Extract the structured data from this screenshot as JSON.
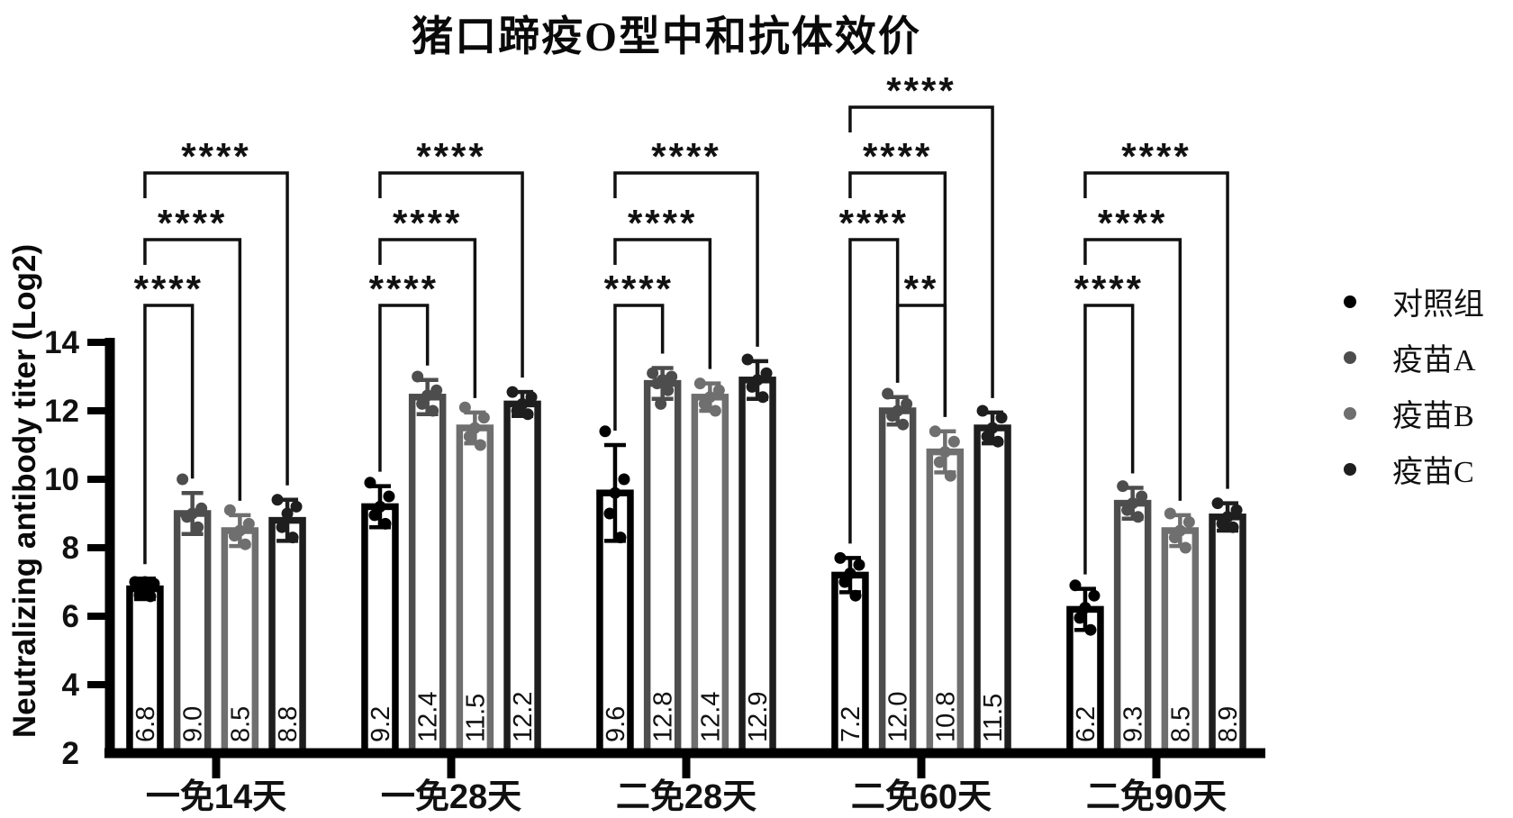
{
  "title": "猪口蹄疫O型中和抗体效价",
  "ylabel": "Neutralizing antibody titer (Log2)",
  "legend": [
    {
      "label": "对照组",
      "color": "#000000"
    },
    {
      "label": "疫苗A",
      "color": "#4d4d4d"
    },
    {
      "label": "疫苗B",
      "color": "#6f6f6f"
    },
    {
      "label": "疫苗C",
      "color": "#1e1e1e"
    }
  ],
  "chart_data": {
    "type": "bar",
    "title": "猪口蹄疫O型中和抗体效价",
    "ylabel": "Neutralizing antibody titer (Log2)",
    "ylim": [
      2,
      14
    ],
    "yticks": [
      2,
      4,
      6,
      8,
      10,
      12,
      14
    ],
    "grid": false,
    "legend_position": "right",
    "categories": [
      "一免14天",
      "一免28天",
      "二免28天",
      "二免60天",
      "二免90天"
    ],
    "series": [
      {
        "name": "对照组",
        "color": "#000000",
        "values": [
          6.8,
          9.2,
          9.6,
          7.2,
          6.2
        ],
        "sd": [
          0.3,
          0.6,
          1.4,
          0.5,
          0.6
        ],
        "points": [
          [
            7.0,
            6.95,
            7.0,
            6.62,
            6.58,
            6.9
          ],
          [
            9.9,
            9.5,
            9.2,
            8.95,
            8.7
          ],
          [
            11.4,
            10.0,
            9.6,
            9.0,
            8.3
          ],
          [
            7.7,
            7.5,
            7.25,
            7.0,
            6.6
          ],
          [
            6.9,
            6.6,
            6.25,
            5.95,
            5.6
          ]
        ]
      },
      {
        "name": "疫苗A",
        "color": "#4d4d4d",
        "values": [
          9.0,
          12.4,
          12.8,
          12.0,
          9.3
        ],
        "sd": [
          0.6,
          0.5,
          0.45,
          0.4,
          0.45
        ],
        "points": [
          [
            10.0,
            9.15,
            9.0,
            8.9,
            8.6
          ],
          [
            13.0,
            12.6,
            12.45,
            12.2,
            12.0
          ],
          [
            13.1,
            13.0,
            12.9,
            12.8,
            12.6,
            12.2
          ],
          [
            12.5,
            12.2,
            12.0,
            11.85,
            11.6
          ],
          [
            9.8,
            9.5,
            9.3,
            9.1,
            8.9
          ]
        ]
      },
      {
        "name": "疫苗B",
        "color": "#6f6f6f",
        "values": [
          8.5,
          11.5,
          12.4,
          10.8,
          8.5
        ],
        "sd": [
          0.45,
          0.45,
          0.4,
          0.6,
          0.45
        ],
        "points": [
          [
            9.1,
            8.7,
            8.5,
            8.35,
            8.1
          ],
          [
            12.1,
            11.8,
            11.5,
            11.25,
            11.0
          ],
          [
            12.8,
            12.6,
            12.4,
            12.2,
            12.0
          ],
          [
            11.4,
            11.1,
            10.8,
            10.5,
            10.1
          ],
          [
            9.0,
            8.75,
            8.5,
            8.3,
            8.0
          ]
        ]
      },
      {
        "name": "疫苗C",
        "color": "#1e1e1e",
        "values": [
          8.8,
          12.2,
          12.9,
          11.5,
          8.9
        ],
        "sd": [
          0.6,
          0.35,
          0.55,
          0.45,
          0.4
        ],
        "points": [
          [
            9.4,
            9.2,
            9.0,
            8.6,
            8.3
          ],
          [
            12.55,
            12.4,
            12.2,
            12.0,
            11.9
          ],
          [
            13.5,
            13.1,
            12.9,
            12.7,
            12.4
          ],
          [
            12.0,
            11.8,
            11.5,
            11.25,
            11.1
          ],
          [
            9.3,
            9.1,
            8.9,
            8.7,
            8.6
          ]
        ]
      }
    ],
    "bar_value_labels": [
      [
        "6.8",
        "9.0",
        "8.5",
        "8.8"
      ],
      [
        "9.2",
        "12.4",
        "11.5",
        "12.2"
      ],
      [
        "9.6",
        "12.8",
        "12.4",
        "12.9"
      ],
      [
        "7.2",
        "12.0",
        "10.8",
        "11.5"
      ],
      [
        "6.2",
        "9.3",
        "8.5",
        "8.9"
      ]
    ],
    "significance": [
      {
        "group": 0,
        "from": 0,
        "to": 1,
        "level": 1,
        "label": "****"
      },
      {
        "group": 0,
        "from": 0,
        "to": 2,
        "level": 2,
        "label": "****"
      },
      {
        "group": 0,
        "from": 0,
        "to": 3,
        "level": 3,
        "label": "****"
      },
      {
        "group": 1,
        "from": 0,
        "to": 1,
        "level": 1,
        "label": "****"
      },
      {
        "group": 1,
        "from": 0,
        "to": 2,
        "level": 2,
        "label": "****"
      },
      {
        "group": 1,
        "from": 0,
        "to": 3,
        "level": 3,
        "label": "****"
      },
      {
        "group": 2,
        "from": 0,
        "to": 1,
        "level": 1,
        "label": "****"
      },
      {
        "group": 2,
        "from": 0,
        "to": 2,
        "level": 2,
        "label": "****"
      },
      {
        "group": 2,
        "from": 0,
        "to": 3,
        "level": 3,
        "label": "****"
      },
      {
        "group": 3,
        "from": 1,
        "to": 2,
        "level": 1,
        "label": "**"
      },
      {
        "group": 3,
        "from": 0,
        "to": 1,
        "level": 2,
        "label": "****"
      },
      {
        "group": 3,
        "from": 0,
        "to": 2,
        "level": 3,
        "label": "****"
      },
      {
        "group": 3,
        "from": 0,
        "to": 3,
        "level": 4,
        "label": "****"
      },
      {
        "group": 4,
        "from": 0,
        "to": 1,
        "level": 1,
        "label": "****"
      },
      {
        "group": 4,
        "from": 0,
        "to": 2,
        "level": 2,
        "label": "****"
      },
      {
        "group": 4,
        "from": 0,
        "to": 3,
        "level": 3,
        "label": "****"
      }
    ]
  }
}
